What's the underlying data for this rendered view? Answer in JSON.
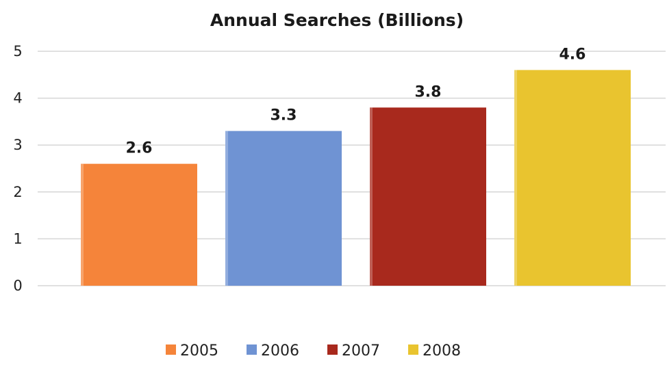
{
  "chart_data": {
    "type": "bar",
    "title": "Annual Searches (Billions)",
    "xlabel": "",
    "ylabel": "",
    "categories": [
      "2005",
      "2006",
      "2007",
      "2008"
    ],
    "values": [
      2.6,
      3.3,
      3.8,
      4.6
    ],
    "data_labels": [
      "2.6",
      "3.3",
      "3.8",
      "4.6"
    ],
    "colors": [
      "#F5843A",
      "#6F93D3",
      "#A8291D",
      "#E9C42F"
    ],
    "ylim": [
      0,
      5
    ],
    "yticks": [
      "0",
      "1",
      "2",
      "3",
      "4",
      "5"
    ],
    "grid": true,
    "legend": {
      "placement": "bottom",
      "entries": [
        "2005",
        "2006",
        "2007",
        "2008"
      ]
    }
  }
}
